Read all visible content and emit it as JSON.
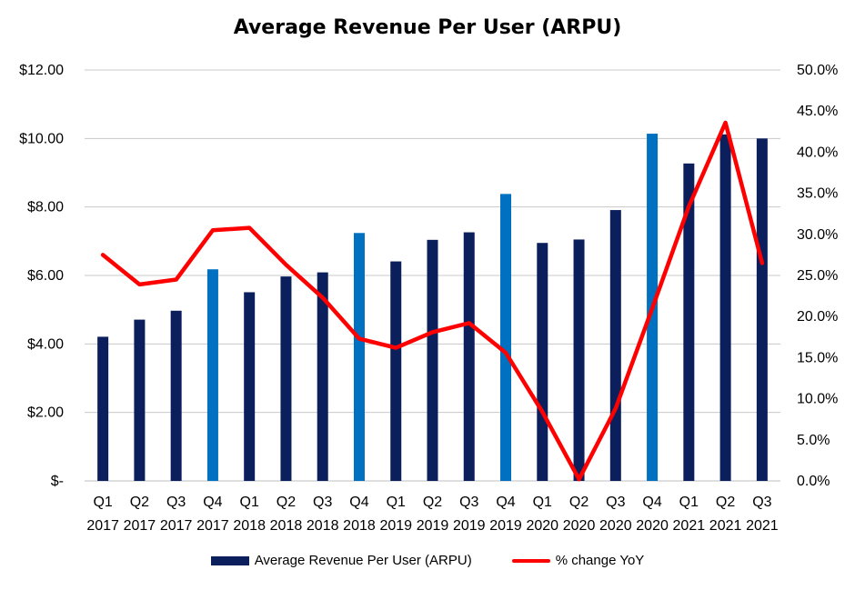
{
  "chart_data": {
    "type": "bar",
    "title": "Average Revenue Per User (ARPU)",
    "categories": [
      [
        "Q1",
        "2017"
      ],
      [
        "Q2",
        "2017"
      ],
      [
        "Q3",
        "2017"
      ],
      [
        "Q4",
        "2017"
      ],
      [
        "Q1",
        "2018"
      ],
      [
        "Q2",
        "2018"
      ],
      [
        "Q3",
        "2018"
      ],
      [
        "Q4",
        "2018"
      ],
      [
        "Q1",
        "2019"
      ],
      [
        "Q2",
        "2019"
      ],
      [
        "Q3",
        "2019"
      ],
      [
        "Q4",
        "2019"
      ],
      [
        "Q1",
        "2020"
      ],
      [
        "Q2",
        "2020"
      ],
      [
        "Q3",
        "2020"
      ],
      [
        "Q4",
        "2020"
      ],
      [
        "Q1",
        "2021"
      ],
      [
        "Q2",
        "2021"
      ],
      [
        "Q3",
        "2021"
      ]
    ],
    "series": [
      {
        "name": "Average Revenue Per User (ARPU)",
        "type": "bar",
        "axis": "left",
        "values": [
          4.21,
          4.71,
          4.97,
          6.18,
          5.51,
          5.97,
          6.09,
          7.24,
          6.41,
          7.04,
          7.26,
          8.38,
          6.95,
          7.05,
          7.91,
          10.14,
          9.27,
          10.12,
          10.0
        ]
      },
      {
        "name": "% change YoY",
        "type": "line",
        "axis": "right",
        "values": [
          27.5,
          23.9,
          24.5,
          30.5,
          30.8,
          26.3,
          22.3,
          17.3,
          16.2,
          18.1,
          19.2,
          15.6,
          8.4,
          0.2,
          8.8,
          21.0,
          33.4,
          43.6,
          26.5
        ]
      }
    ],
    "bar_colors": {
      "default": "#0b1f5c",
      "q4": "#0070c0"
    },
    "line_color": "#ff0000",
    "ylim": [
      0,
      12
    ],
    "y_ticks": [
      {
        "value": 0,
        "label": "$-"
      },
      {
        "value": 2,
        "label": "$2.00"
      },
      {
        "value": 4,
        "label": "$4.00"
      },
      {
        "value": 6,
        "label": "$6.00"
      },
      {
        "value": 8,
        "label": "$8.00"
      },
      {
        "value": 10,
        "label": "$10.00"
      },
      {
        "value": 12,
        "label": "$12.00"
      }
    ],
    "y2lim": [
      0,
      50
    ],
    "y2_ticks": [
      {
        "value": 0,
        "label": "0.0%"
      },
      {
        "value": 5,
        "label": "5.0%"
      },
      {
        "value": 10,
        "label": "10.0%"
      },
      {
        "value": 15,
        "label": "15.0%"
      },
      {
        "value": 20,
        "label": "20.0%"
      },
      {
        "value": 25,
        "label": "25.0%"
      },
      {
        "value": 30,
        "label": "30.0%"
      },
      {
        "value": 35,
        "label": "35.0%"
      },
      {
        "value": 40,
        "label": "40.0%"
      },
      {
        "value": 45,
        "label": "45.0%"
      },
      {
        "value": 50,
        "label": "50.0%"
      }
    ],
    "grid": true,
    "legend_position": "bottom"
  },
  "legend": {
    "bar_label": "Average Revenue Per User (ARPU)",
    "line_label": "% change YoY"
  }
}
